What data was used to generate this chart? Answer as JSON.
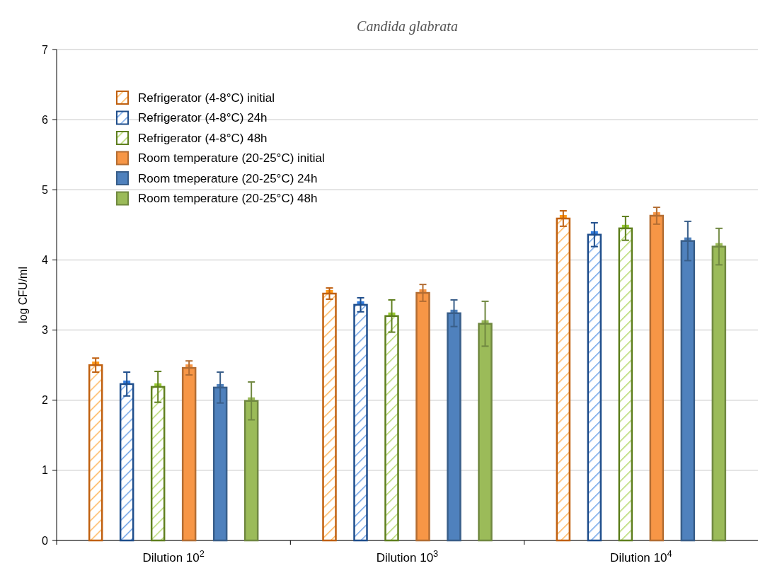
{
  "chart_data": {
    "type": "bar",
    "title": "Candida glabrata",
    "ylabel": "log CFU/ml",
    "categories": [
      "Dilution 10$^{2}$",
      "Dilution 10$^{3}$",
      "Dilution 10$^{4}$"
    ],
    "series": [
      {
        "name": "Refrigerator (4-8°C)  initial",
        "color": "#c0600f",
        "values": [
          2.5,
          3.52,
          4.59
        ],
        "errors": [
          0.1,
          0.08,
          0.11
        ]
      },
      {
        "name": "Refrigerator (4-8°C) 24h",
        "color": "#1f4e8c",
        "values": [
          2.23,
          3.36,
          4.36
        ],
        "errors": [
          0.17,
          0.1,
          0.17
        ]
      },
      {
        "name": "Refrigerator (4-8°C) 48h",
        "color": "#5f7f1f",
        "values": [
          2.19,
          3.2,
          4.45
        ],
        "errors": [
          0.22,
          0.23,
          0.17
        ]
      },
      {
        "name": "Room temperature (20-25°C) initial",
        "color": "#f79646",
        "values": [
          2.46,
          3.53,
          4.63
        ],
        "errors": [
          0.1,
          0.12,
          0.12
        ]
      },
      {
        "name": "Room tmeperature (20-25°C) 24h",
        "color": "#4f81bd",
        "values": [
          2.18,
          3.24,
          4.27
        ],
        "errors": [
          0.22,
          0.19,
          0.28
        ]
      },
      {
        "name": "Room temperature (20-25°C) 48h",
        "color": "#9bbb59",
        "values": [
          1.99,
          3.09,
          4.19
        ],
        "errors": [
          0.27,
          0.32,
          0.26
        ]
      }
    ],
    "ylim": [
      0,
      7
    ],
    "yticks": [
      0,
      1,
      2,
      3,
      4,
      5,
      6,
      7
    ],
    "grid": "y",
    "legend": "top left",
    "marker": "square"
  }
}
